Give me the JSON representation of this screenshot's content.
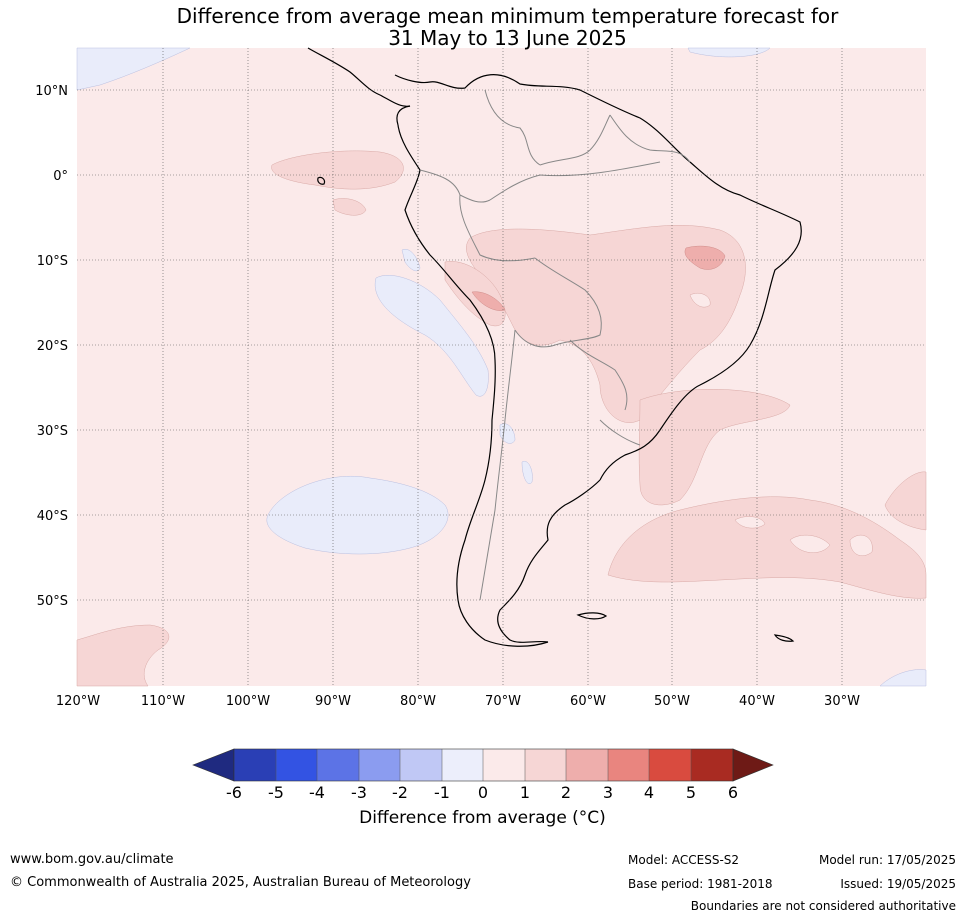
{
  "title": {
    "line1": "Difference from average mean minimum temperature forecast for",
    "line2": "31 May to 13 June 2025"
  },
  "map": {
    "region": "South America",
    "lat_ticks": [
      "10°N",
      "0°",
      "10°S",
      "20°S",
      "30°S",
      "40°S",
      "50°S"
    ],
    "lon_ticks": [
      "120°W",
      "110°W",
      "100°W",
      "90°W",
      "80°W",
      "70°W",
      "60°W",
      "50°W",
      "40°W",
      "30°W"
    ],
    "colors": {
      "background_0_1": "#fbeaea",
      "band_1_2": "#f6d6d5",
      "band_2_3": "#eeaeac",
      "band_m1_0": "#e9ecfa",
      "coast": "#000000",
      "border": "#888888"
    }
  },
  "colorbar": {
    "tick_labels": [
      "-6",
      "-5",
      "-4",
      "-3",
      "-2",
      "-1",
      "0",
      "1",
      "2",
      "3",
      "4",
      "5",
      "6"
    ],
    "colors": [
      "#1f2a80",
      "#2a3fb5",
      "#3353e3",
      "#5c73e6",
      "#8b9cf0",
      "#c0c8f5",
      "#eceefb",
      "#fbeaea",
      "#f6d6d5",
      "#eeaeac",
      "#e9857f",
      "#d94b3f",
      "#a92b22",
      "#6e1a16"
    ],
    "label": "Difference from average (°C)"
  },
  "footer": {
    "website": "www.bom.gov.au/climate",
    "copyright": "© Commonwealth of Australia 2025, Australian Bureau of Meteorology",
    "model": "Model: ACCESS-S2",
    "base_period": "Base period: 1981-2018",
    "model_run": "Model run: 17/05/2025",
    "issued": "Issued: 19/05/2025",
    "disclaimer": "Boundaries are not considered authoritative"
  }
}
